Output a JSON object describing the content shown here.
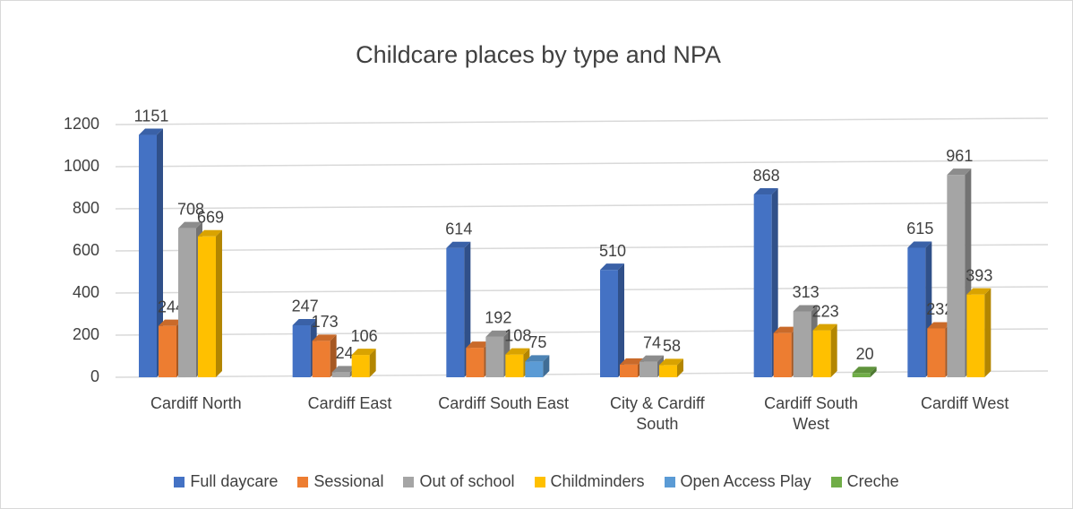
{
  "chart_data": {
    "type": "bar3d",
    "title": "Childcare places by type and NPA",
    "categories": [
      "Cardiff North",
      "Cardiff East",
      "Cardiff South East",
      "City & Cardiff South",
      "Cardiff South West",
      "Cardiff West"
    ],
    "series": [
      {
        "name": "Full daycare",
        "color": "#4472c4",
        "values": [
          1151,
          247,
          614,
          510,
          868,
          615
        ],
        "value_labels": [
          "1151",
          "247",
          "614",
          "510",
          "868",
          "615"
        ]
      },
      {
        "name": "Sessional",
        "color": "#ed7d31",
        "values": [
          244,
          173,
          140,
          60,
          210,
          232
        ],
        "value_labels": [
          "244",
          "173",
          null,
          null,
          null,
          "232"
        ]
      },
      {
        "name": "Out of school",
        "color": "#a5a5a5",
        "values": [
          708,
          24,
          192,
          74,
          313,
          961
        ],
        "value_labels": [
          "708",
          "24",
          "192",
          "74",
          "313",
          "961"
        ]
      },
      {
        "name": "Childminders",
        "color": "#ffc000",
        "values": [
          669,
          106,
          108,
          58,
          223,
          393
        ],
        "value_labels": [
          "669",
          "106",
          "108",
          "58",
          "223",
          "393"
        ]
      },
      {
        "name": "Open Access Play",
        "color": "#5b9bd5",
        "values": [
          null,
          null,
          75,
          null,
          null,
          null
        ],
        "value_labels": [
          null,
          null,
          "75",
          null,
          null,
          null
        ]
      },
      {
        "name": "Creche",
        "color": "#70ad47",
        "values": [
          null,
          null,
          null,
          null,
          20,
          null
        ],
        "value_labels": [
          null,
          null,
          null,
          null,
          "20",
          null
        ]
      }
    ],
    "ylim": [
      0,
      1200
    ],
    "yticks": [
      0,
      200,
      400,
      600,
      800,
      1000,
      1200
    ],
    "grid": true,
    "legend": "bottom"
  }
}
